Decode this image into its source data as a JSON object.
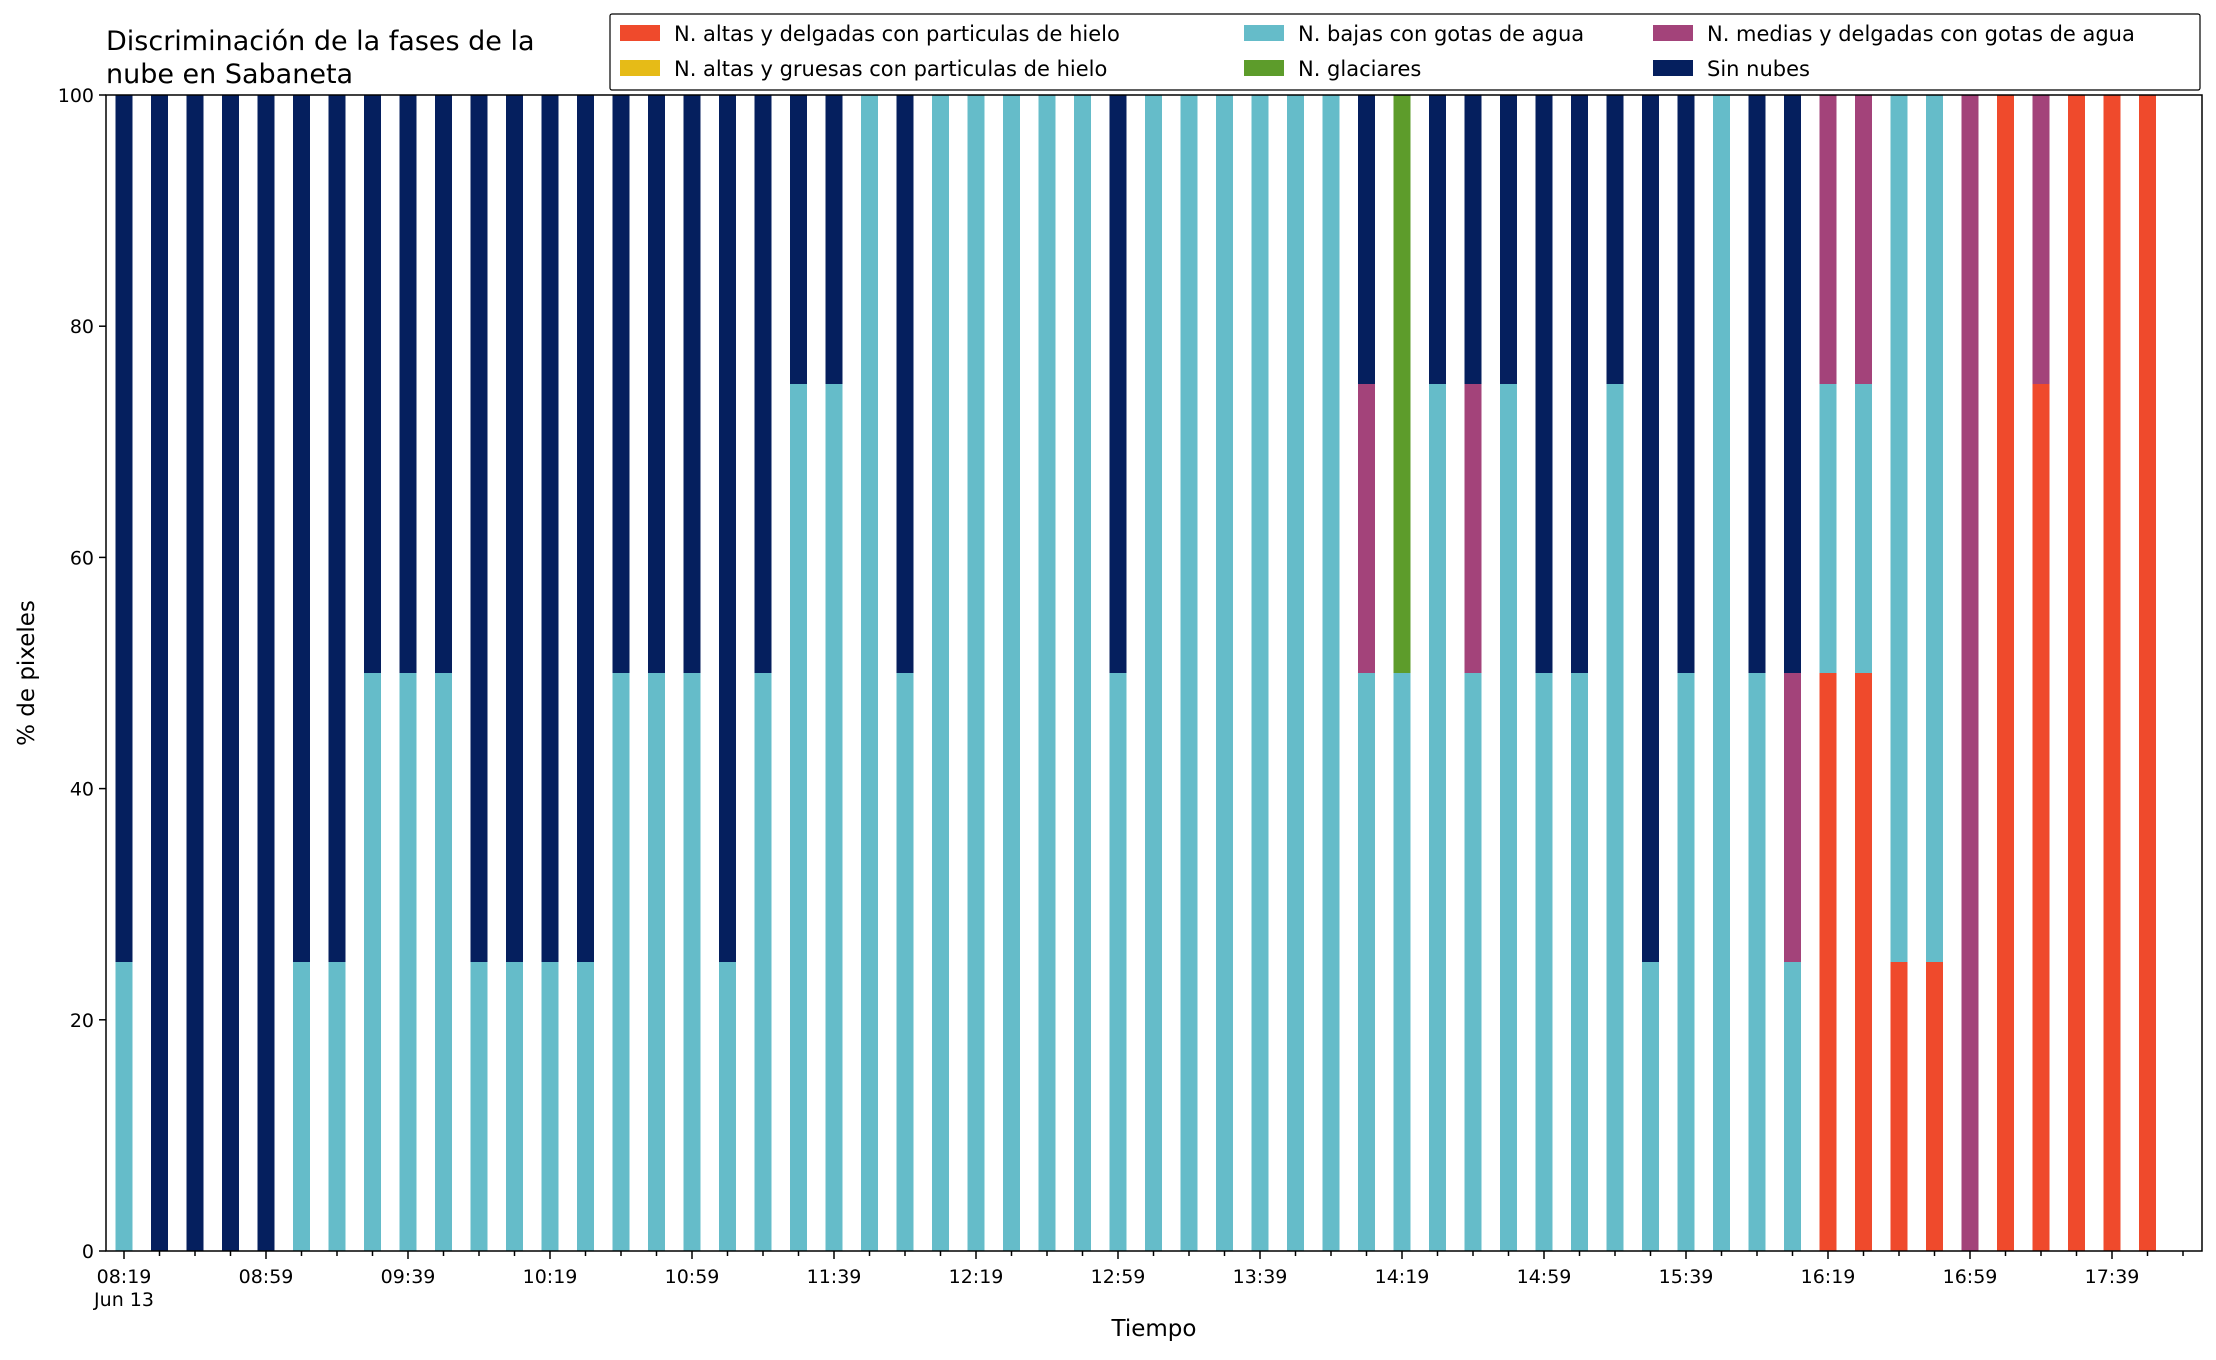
{
  "chart_data": {
    "type": "bar",
    "stacked": true,
    "title_lines": [
      "Discriminación de la fases de la",
      "nube en Sabaneta"
    ],
    "xlabel": "Tiempo",
    "ylabel": "% de pixeles",
    "ylim": [
      0,
      100
    ],
    "yticks": [
      "0",
      "20",
      "40",
      "60",
      "80",
      "100"
    ],
    "grid": false,
    "legend_position": "top-right",
    "x_tick_labels": [
      "08:19",
      "08:59",
      "09:39",
      "10:19",
      "10:59",
      "11:39",
      "12:19",
      "12:59",
      "13:39",
      "14:19",
      "14:59",
      "15:39",
      "16:19",
      "16:59",
      "17:39"
    ],
    "x_date_label": "Jun 13",
    "times": [
      "08:19",
      "08:29",
      "08:39",
      "08:49",
      "08:59",
      "09:09",
      "09:19",
      "09:29",
      "09:39",
      "09:49",
      "09:59",
      "10:09",
      "10:19",
      "10:29",
      "10:39",
      "10:49",
      "10:59",
      "11:09",
      "11:19",
      "11:29",
      "11:39",
      "11:49",
      "11:59",
      "12:09",
      "12:19",
      "12:29",
      "12:39",
      "12:49",
      "12:59",
      "13:09",
      "13:19",
      "13:29",
      "13:39",
      "13:49",
      "13:59",
      "14:09",
      "14:19",
      "14:29",
      "14:39",
      "14:49",
      "14:59",
      "15:09",
      "15:19",
      "15:29",
      "15:39",
      "15:49",
      "15:59",
      "16:09",
      "16:19",
      "16:29",
      "16:39",
      "16:49",
      "16:59",
      "17:09",
      "17:19",
      "17:29",
      "17:39",
      "17:49"
    ],
    "series": [
      {
        "name": "N. altas y delgadas con particulas de hielo",
        "color": "#ef4a2c",
        "values": [
          0,
          0,
          0,
          0,
          0,
          0,
          0,
          0,
          0,
          0,
          0,
          0,
          0,
          0,
          0,
          0,
          0,
          0,
          0,
          0,
          0,
          0,
          0,
          0,
          0,
          0,
          0,
          0,
          0,
          0,
          0,
          0,
          0,
          0,
          0,
          0,
          0,
          0,
          0,
          0,
          0,
          0,
          0,
          0,
          0,
          0,
          0,
          0,
          50,
          50,
          25,
          25,
          0,
          100,
          75,
          100,
          100,
          100
        ]
      },
      {
        "name": "N. altas y gruesas con particulas de hielo",
        "color": "#e6bb17",
        "values": [
          0,
          0,
          0,
          0,
          0,
          0,
          0,
          0,
          0,
          0,
          0,
          0,
          0,
          0,
          0,
          0,
          0,
          0,
          0,
          0,
          0,
          0,
          0,
          0,
          0,
          0,
          0,
          0,
          0,
          0,
          0,
          0,
          0,
          0,
          0,
          0,
          0,
          0,
          0,
          0,
          0,
          0,
          0,
          0,
          0,
          0,
          0,
          0,
          0,
          0,
          0,
          0,
          0,
          0,
          0,
          0,
          0,
          0
        ]
      },
      {
        "name": "N. bajas con gotas de agua",
        "color": "#65bcc9",
        "values": [
          25,
          0,
          0,
          0,
          0,
          25,
          25,
          50,
          50,
          50,
          25,
          25,
          25,
          25,
          50,
          50,
          50,
          25,
          50,
          75,
          75,
          100,
          50,
          100,
          100,
          100,
          100,
          100,
          50,
          100,
          100,
          100,
          100,
          100,
          100,
          50,
          50,
          75,
          50,
          75,
          50,
          50,
          75,
          25,
          50,
          100,
          50,
          25,
          25,
          25,
          75,
          75,
          0,
          0,
          0,
          0,
          0,
          0
        ]
      },
      {
        "name": "N. glaciares",
        "color": "#5d9c2b",
        "values": [
          0,
          0,
          0,
          0,
          0,
          0,
          0,
          0,
          0,
          0,
          0,
          0,
          0,
          0,
          0,
          0,
          0,
          0,
          0,
          0,
          0,
          0,
          0,
          0,
          0,
          0,
          0,
          0,
          0,
          0,
          0,
          0,
          0,
          0,
          0,
          0,
          50,
          0,
          0,
          0,
          0,
          0,
          0,
          0,
          0,
          0,
          0,
          0,
          0,
          0,
          0,
          0,
          0,
          0,
          0,
          0,
          0,
          0
        ]
      },
      {
        "name": "N. medias y delgadas con gotas de agua",
        "color": "#a3437a",
        "values": [
          0,
          0,
          0,
          0,
          0,
          0,
          0,
          0,
          0,
          0,
          0,
          0,
          0,
          0,
          0,
          0,
          0,
          0,
          0,
          0,
          0,
          0,
          0,
          0,
          0,
          0,
          0,
          0,
          0,
          0,
          0,
          0,
          0,
          0,
          0,
          25,
          0,
          0,
          25,
          0,
          0,
          0,
          0,
          0,
          0,
          0,
          0,
          25,
          25,
          25,
          0,
          0,
          100,
          0,
          25,
          0,
          0,
          0
        ]
      },
      {
        "name": "Sin nubes",
        "color": "#051f5e",
        "values": [
          75,
          100,
          100,
          100,
          100,
          75,
          75,
          50,
          50,
          50,
          75,
          75,
          75,
          75,
          50,
          50,
          50,
          75,
          50,
          25,
          25,
          0,
          50,
          0,
          0,
          0,
          0,
          0,
          50,
          0,
          0,
          0,
          0,
          0,
          0,
          25,
          0,
          25,
          25,
          25,
          50,
          50,
          25,
          75,
          50,
          0,
          50,
          50,
          0,
          0,
          0,
          0,
          0,
          0,
          0,
          0,
          0,
          0
        ]
      }
    ]
  }
}
